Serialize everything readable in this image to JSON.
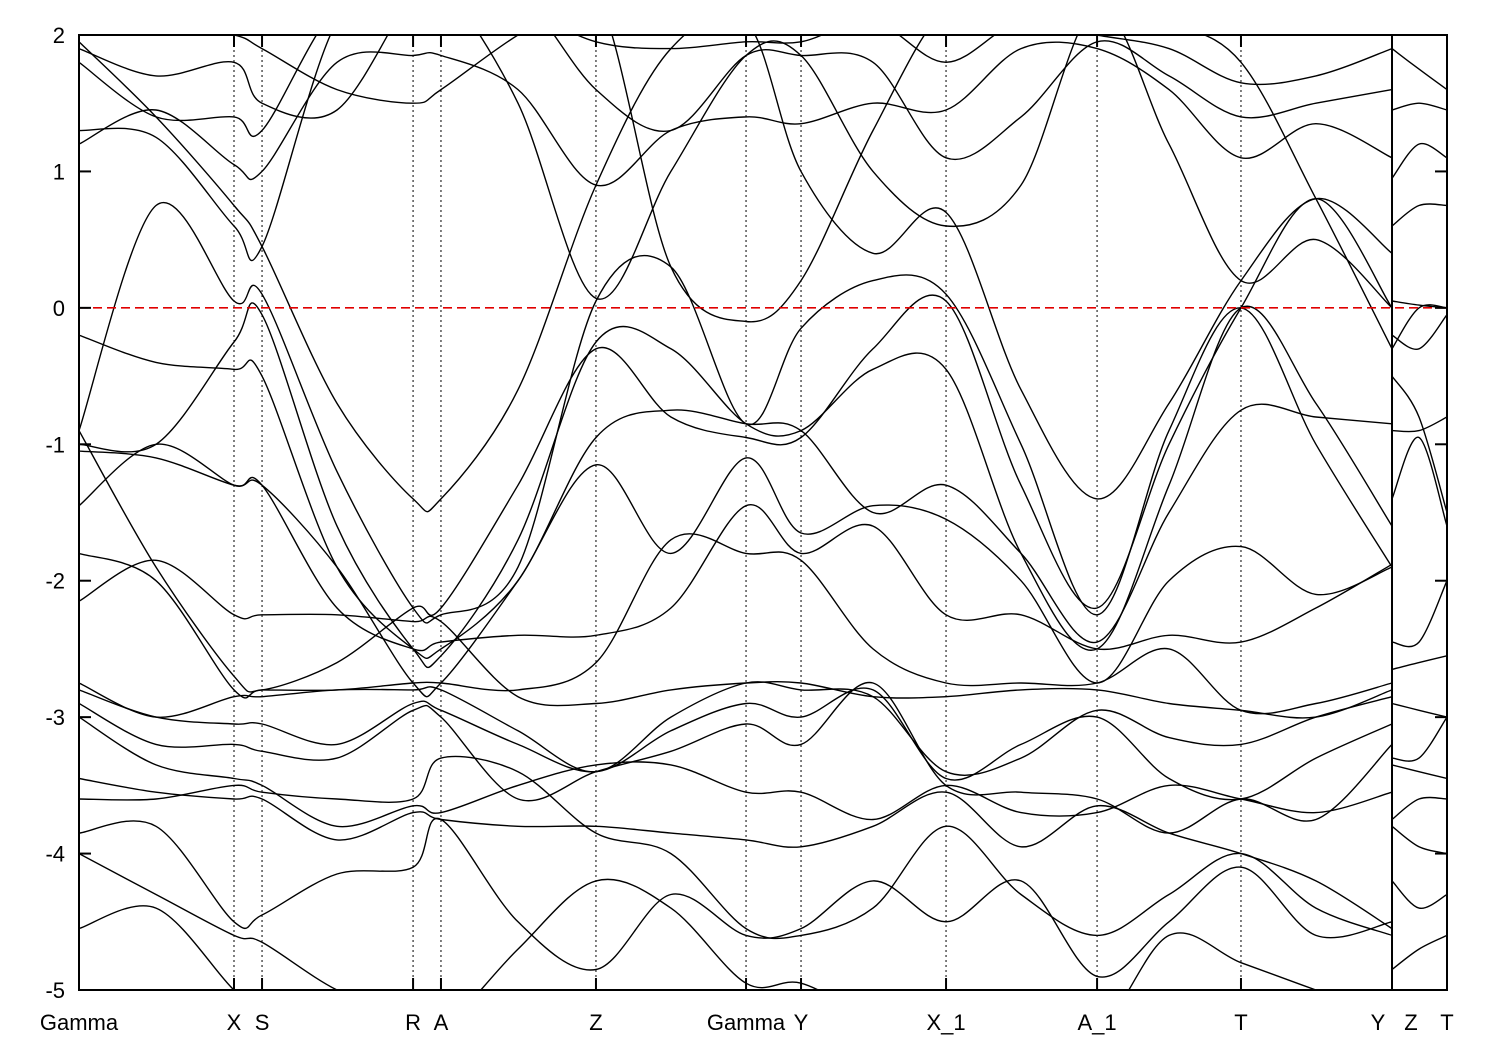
{
  "chart_data": {
    "type": "line",
    "title": "",
    "xlabel": "",
    "ylabel": "",
    "ylim": [
      -5,
      2
    ],
    "yticks": [
      -5,
      -4,
      -3,
      -2,
      -1,
      0,
      1,
      2
    ],
    "xlim": [
      0,
      1
    ],
    "path_break_k": 0.9598,
    "xticks": [
      {
        "label": "Gamma",
        "k": 0
      },
      {
        "label": "X",
        "k": 0.1133
      },
      {
        "label": "S",
        "k": 0.1338
      },
      {
        "label": "R",
        "k": 0.2442
      },
      {
        "label": "A",
        "k": 0.2646
      },
      {
        "label": "Z",
        "k": 0.3779
      },
      {
        "label": "Gamma",
        "k": 0.4876
      },
      {
        "label": "Y",
        "k": 0.5278
      },
      {
        "label": "X_1",
        "k": 0.6338
      },
      {
        "label": "A_1",
        "k": 0.7442
      },
      {
        "label": "T",
        "k": 0.8494
      },
      {
        "label": "Y",
        "k": 0.9598
      },
      {
        "label": "Z",
        "k": 0.9598
      },
      {
        "label": "T",
        "k": 1.0
      }
    ],
    "reference_line": {
      "y": 0,
      "color": "#e00000",
      "style": "dashed"
    },
    "band_color": "#000000",
    "k_grid": [
      0,
      0.0563,
      0.1133,
      0.1338,
      0.1886,
      0.2442,
      0.2646,
      0.3209,
      0.3779,
      0.4327,
      0.4876,
      0.5278,
      0.5804,
      0.6338,
      0.6886,
      0.7442,
      0.7968,
      0.8494,
      0.9042,
      0.9598,
      0.9598,
      0.9795,
      1.0
    ],
    "bands": [
      [
        1.95,
        1.4,
        0.75,
        0.45,
        -0.7,
        -1.4,
        -1.4,
        -0.6,
        0.9,
        1.9,
        2.1,
        1.0,
        0.4,
        0.7,
        -0.6,
        -1.4,
        -0.7,
        0.2,
        0.8,
        0.4,
        0.6,
        0.75,
        0.75
      ],
      [
        -0.9,
        -1.9,
        -2.7,
        -2.8,
        -2.6,
        -2.2,
        -2.2,
        -1.3,
        -0.3,
        -0.8,
        -0.95,
        -0.95,
        -0.3,
        0.05,
        -1.3,
        -2.2,
        -1.0,
        0.0,
        0.8,
        0.0,
        -0.9,
        -0.9,
        -0.8
      ],
      [
        -1.0,
        -1.0,
        -0.25,
        -0.05,
        -1.6,
        -2.5,
        -2.55,
        -1.7,
        -0.25,
        -0.3,
        -0.85,
        -0.9,
        -0.45,
        -0.45,
        -1.8,
        -2.5,
        -1.3,
        0.0,
        -0.7,
        -1.6,
        -1.4,
        -0.95,
        -1.6
      ],
      [
        -0.9,
        0.75,
        0.05,
        0.1,
        -1.2,
        -2.2,
        -2.25,
        -1.9,
        0.05,
        0.3,
        -0.85,
        -0.15,
        0.2,
        0.1,
        -1.0,
        -2.25,
        -0.9,
        0.0,
        -1.0,
        -1.9,
        -0.2,
        -0.3,
        -0.05
      ],
      [
        -0.2,
        -0.4,
        -0.45,
        -0.5,
        -1.9,
        -2.5,
        -2.5,
        -2.0,
        -0.95,
        -0.75,
        -0.85,
        -0.9,
        -1.5,
        -1.3,
        -1.8,
        -2.45,
        -1.5,
        -0.75,
        -0.8,
        -0.85,
        -0.3,
        0.0,
        0.0
      ],
      [
        -1.05,
        -1.1,
        -1.3,
        -1.3,
        -1.9,
        -2.75,
        -2.75,
        -2.0,
        -1.15,
        -1.8,
        -1.1,
        -1.65,
        -1.45,
        -1.55,
        -2.0,
        -2.75,
        -2.0,
        -1.75,
        -2.1,
        -1.9,
        -2.45,
        -2.45,
        -2.0
      ],
      [
        -1.45,
        -1.0,
        -1.3,
        -1.3,
        -2.2,
        -2.5,
        -2.45,
        -2.4,
        -2.4,
        -2.2,
        -1.45,
        -1.8,
        -1.6,
        -2.25,
        -2.25,
        -2.5,
        -2.4,
        -2.45,
        -2.2,
        -1.88,
        -2.65,
        -2.6,
        -2.55
      ],
      [
        -1.8,
        -2.0,
        -2.8,
        -2.8,
        -2.8,
        -2.75,
        -2.75,
        -2.8,
        -2.6,
        -1.7,
        -1.8,
        -1.85,
        -2.5,
        -2.75,
        -2.75,
        -2.75,
        -2.5,
        -2.95,
        -2.9,
        -2.75,
        -2.9,
        -2.95,
        -3.0
      ],
      [
        -2.15,
        -1.85,
        -2.25,
        -2.25,
        -2.25,
        -2.3,
        -2.3,
        -2.85,
        -2.9,
        -2.8,
        -2.75,
        -2.75,
        -2.85,
        -2.85,
        -2.8,
        -2.8,
        -2.9,
        -2.95,
        -3.0,
        -2.8,
        -3.3,
        -3.3,
        -3.0
      ],
      [
        -2.75,
        -3.0,
        -2.85,
        -2.85,
        -2.8,
        -2.8,
        -2.8,
        -3.1,
        -3.4,
        -3.0,
        -2.75,
        -2.8,
        -2.85,
        -3.4,
        -3.3,
        -2.95,
        -3.15,
        -3.2,
        -3.0,
        -2.85,
        -3.35,
        -3.4,
        -3.45
      ],
      [
        -2.8,
        -3.0,
        -3.05,
        -3.05,
        -3.2,
        -2.9,
        -2.95,
        -3.2,
        -3.4,
        -3.1,
        -2.9,
        -3.0,
        -2.8,
        -3.45,
        -3.2,
        -3.0,
        -3.45,
        -3.6,
        -3.3,
        -3.05,
        -3.75,
        -3.6,
        -3.6
      ],
      [
        -2.9,
        -3.2,
        -3.2,
        -3.25,
        -3.3,
        -2.95,
        -3.0,
        -3.6,
        -3.4,
        -3.25,
        -3.05,
        -3.2,
        -2.75,
        -3.5,
        -3.55,
        -3.6,
        -3.85,
        -3.6,
        -3.75,
        -3.2,
        -3.8,
        -3.95,
        -4.0
      ],
      [
        -3.0,
        -3.35,
        -3.45,
        -3.5,
        -3.8,
        -3.65,
        -3.7,
        -3.5,
        -3.35,
        -3.35,
        -3.55,
        -3.55,
        -3.75,
        -3.5,
        -3.7,
        -3.7,
        -3.5,
        -3.6,
        -3.7,
        -3.55,
        -4.2,
        -4.4,
        -4.3
      ],
      [
        -3.45,
        -3.55,
        -3.6,
        -3.6,
        -3.9,
        -3.7,
        -3.75,
        -3.8,
        -3.8,
        -3.85,
        -3.9,
        -3.95,
        -3.8,
        -3.55,
        -3.95,
        -3.65,
        -3.85,
        -4.0,
        -4.2,
        -4.55,
        -4.85,
        -4.7,
        -4.6
      ],
      [
        -3.6,
        -3.6,
        -3.5,
        -3.55,
        -3.6,
        -3.6,
        -3.3,
        -3.4,
        -3.85,
        -4.0,
        -4.55,
        -4.6,
        -4.4,
        -3.8,
        -4.3,
        -4.6,
        -4.3,
        -4.0,
        -4.4,
        -4.6,
        -5.2,
        -5.1,
        -5.0
      ],
      [
        -3.85,
        -3.8,
        -4.5,
        -4.45,
        -4.15,
        -4.1,
        -3.75,
        -4.5,
        -4.85,
        -4.3,
        -4.6,
        -4.55,
        -4.2,
        -4.5,
        -4.2,
        -4.9,
        -4.5,
        -4.1,
        -4.6,
        -4.5,
        -5.3,
        -5.3,
        -5.3
      ],
      [
        -4.0,
        -4.3,
        -4.6,
        -4.65,
        -5.0,
        -5.2,
        -5.3,
        -4.7,
        -4.2,
        -4.4,
        -4.95,
        -4.95,
        -5.2,
        -5.3,
        -5.2,
        -5.3,
        -4.6,
        -4.8,
        -5.0,
        -5.2,
        -5.4,
        -5.4,
        -5.4
      ],
      [
        -4.55,
        -4.4,
        -5.0,
        -5.1,
        -5.3,
        -5.4,
        -5.4,
        -5.3,
        -5.3,
        -5.2,
        -5.3,
        -5.3,
        -5.3,
        -5.4,
        -5.4,
        -5.4,
        -5.2,
        -5.3,
        -5.3,
        -5.4,
        -5.5,
        -5.5,
        -5.5
      ],
      [
        1.2,
        1.45,
        1.05,
        1.0,
        1.8,
        1.85,
        1.85,
        1.6,
        0.9,
        1.3,
        1.4,
        1.35,
        1.5,
        1.45,
        1.9,
        1.9,
        1.6,
        1.1,
        1.35,
        1.1,
        0.95,
        1.2,
        1.1
      ],
      [
        1.3,
        1.25,
        0.6,
        0.45,
        2.1,
        2.4,
        2.4,
        1.5,
        0.07,
        1.0,
        1.85,
        1.85,
        1.0,
        0.6,
        0.9,
        2.2,
        1.2,
        0.2,
        0.5,
        0.0,
        0.05,
        0.02,
        0.0
      ],
      [
        1.8,
        1.4,
        1.4,
        1.3,
        2.2,
        2.3,
        2.3,
        2.3,
        1.6,
        1.3,
        1.85,
        1.85,
        1.8,
        1.1,
        1.4,
        1.95,
        1.7,
        1.4,
        1.5,
        1.6,
        1.45,
        1.5,
        1.45
      ],
      [
        1.9,
        1.7,
        1.8,
        1.5,
        1.45,
        2.3,
        2.3,
        2.2,
        1.95,
        1.9,
        1.95,
        1.95,
        2.1,
        1.8,
        2.1,
        2.0,
        1.9,
        1.65,
        1.7,
        1.9,
        1.9,
        1.75,
        1.6
      ],
      [
        2.3,
        2.1,
        2.0,
        1.9,
        1.6,
        1.5,
        1.6,
        2.0,
        2.3,
        0.3,
        -0.1,
        0.2,
        1.3,
        2.2,
        2.3,
        2.3,
        2.1,
        1.8,
        0.8,
        -0.3,
        -0.5,
        -0.8,
        -1.5
      ]
    ]
  }
}
